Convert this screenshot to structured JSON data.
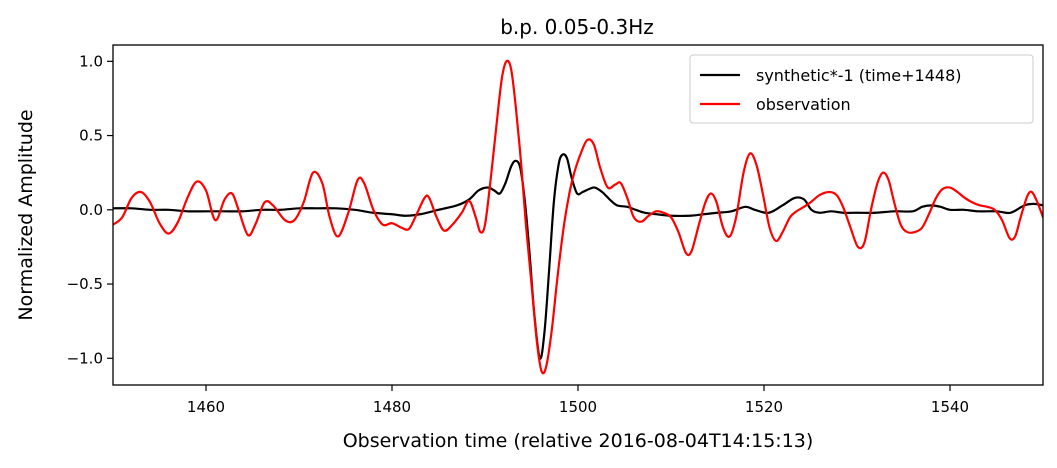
{
  "chart_data": {
    "type": "line",
    "title": "b.p. 0.05-0.3Hz",
    "xlabel": "Observation time (relative 2016-08-04T14:15:13)",
    "ylabel": "Normalized Amplitude",
    "xlim": [
      1450,
      1550
    ],
    "ylim": [
      -1.18,
      1.11
    ],
    "xticks": [
      1460,
      1480,
      1500,
      1520,
      1540
    ],
    "xtick_labels": [
      "1460",
      "1480",
      "1500",
      "1520",
      "1540"
    ],
    "yticks": [
      1.0,
      0.5,
      0.0,
      -0.5,
      -1.0
    ],
    "ytick_labels": [
      "1.0",
      "0.5",
      "0.0",
      "−0.5",
      "−1.0"
    ],
    "grid": false,
    "legend_position": "top-right",
    "series": [
      {
        "name": "synthetic*-1 (time+1448)",
        "color": "#000000",
        "points": [
          [
            1450,
            0.01
          ],
          [
            1452,
            0.01
          ],
          [
            1454,
            0.0
          ],
          [
            1456,
            0.0
          ],
          [
            1458,
            -0.01
          ],
          [
            1460,
            -0.01
          ],
          [
            1462,
            -0.01
          ],
          [
            1464,
            -0.01
          ],
          [
            1466,
            0.0
          ],
          [
            1468,
            0.0
          ],
          [
            1470,
            0.01
          ],
          [
            1472,
            0.01
          ],
          [
            1474,
            0.01
          ],
          [
            1476,
            0.0
          ],
          [
            1477,
            -0.01
          ],
          [
            1478,
            -0.02
          ],
          [
            1480,
            -0.03
          ],
          [
            1481.5,
            -0.04
          ],
          [
            1483,
            -0.03
          ],
          [
            1485,
            0.0
          ],
          [
            1487,
            0.03
          ],
          [
            1488.3,
            0.07
          ],
          [
            1489.3,
            0.13
          ],
          [
            1490.3,
            0.15
          ],
          [
            1491,
            0.13
          ],
          [
            1491.6,
            0.11
          ],
          [
            1492.2,
            0.18
          ],
          [
            1492.8,
            0.29
          ],
          [
            1493.3,
            0.33
          ],
          [
            1493.8,
            0.28
          ],
          [
            1494.3,
            0.05
          ],
          [
            1494.8,
            -0.3
          ],
          [
            1495.3,
            -0.7
          ],
          [
            1495.9,
            -1.0
          ],
          [
            1496.4,
            -0.82
          ],
          [
            1496.9,
            -0.4
          ],
          [
            1497.4,
            0.05
          ],
          [
            1497.9,
            0.3
          ],
          [
            1498.3,
            0.37
          ],
          [
            1498.8,
            0.35
          ],
          [
            1499.3,
            0.22
          ],
          [
            1499.9,
            0.11
          ],
          [
            1500.5,
            0.12
          ],
          [
            1501.2,
            0.14
          ],
          [
            1501.8,
            0.15
          ],
          [
            1502.6,
            0.12
          ],
          [
            1503.4,
            0.07
          ],
          [
            1504.2,
            0.03
          ],
          [
            1505.3,
            0.02
          ],
          [
            1506.2,
            0.0
          ],
          [
            1507.2,
            -0.02
          ],
          [
            1508.5,
            -0.03
          ],
          [
            1510,
            -0.04
          ],
          [
            1512,
            -0.04
          ],
          [
            1513.5,
            -0.03
          ],
          [
            1515,
            -0.02
          ],
          [
            1516.5,
            -0.01
          ],
          [
            1518,
            0.02
          ],
          [
            1519,
            0.0
          ],
          [
            1520.5,
            -0.02
          ],
          [
            1522,
            0.03
          ],
          [
            1523.3,
            0.08
          ],
          [
            1524.3,
            0.07
          ],
          [
            1525.1,
            0.0
          ],
          [
            1526,
            -0.02
          ],
          [
            1527.2,
            -0.01
          ],
          [
            1528.5,
            -0.02
          ],
          [
            1530,
            -0.02
          ],
          [
            1532,
            -0.02
          ],
          [
            1534,
            -0.01
          ],
          [
            1536,
            -0.01
          ],
          [
            1537,
            0.02
          ],
          [
            1538,
            0.03
          ],
          [
            1539,
            0.02
          ],
          [
            1540,
            0.0
          ],
          [
            1541.5,
            0.0
          ],
          [
            1543,
            -0.01
          ],
          [
            1545,
            -0.01
          ],
          [
            1546.5,
            -0.02
          ],
          [
            1548,
            0.03
          ],
          [
            1549,
            0.04
          ],
          [
            1550,
            0.03
          ]
        ]
      },
      {
        "name": "observation",
        "color": "#ff0000",
        "points": [
          [
            1450,
            -0.1
          ],
          [
            1451,
            -0.05
          ],
          [
            1452,
            0.08
          ],
          [
            1453,
            0.12
          ],
          [
            1454,
            0.05
          ],
          [
            1455,
            -0.09
          ],
          [
            1456,
            -0.16
          ],
          [
            1457,
            -0.08
          ],
          [
            1458,
            0.08
          ],
          [
            1459,
            0.19
          ],
          [
            1460,
            0.13
          ],
          [
            1461,
            -0.07
          ],
          [
            1462,
            0.07
          ],
          [
            1462.8,
            0.11
          ],
          [
            1463.5,
            0.0
          ],
          [
            1464.5,
            -0.17
          ],
          [
            1465.3,
            -0.1
          ],
          [
            1466.3,
            0.05
          ],
          [
            1467.2,
            0.03
          ],
          [
            1468.5,
            -0.07
          ],
          [
            1469.5,
            -0.07
          ],
          [
            1470.5,
            0.05
          ],
          [
            1471.5,
            0.25
          ],
          [
            1472.5,
            0.18
          ],
          [
            1473.3,
            -0.05
          ],
          [
            1474.2,
            -0.18
          ],
          [
            1475.3,
            -0.02
          ],
          [
            1476.3,
            0.2
          ],
          [
            1477,
            0.18
          ],
          [
            1478,
            0.0
          ],
          [
            1479,
            -0.1
          ],
          [
            1480,
            -0.09
          ],
          [
            1481,
            -0.12
          ],
          [
            1481.8,
            -0.13
          ],
          [
            1482.5,
            -0.05
          ],
          [
            1483.5,
            0.08
          ],
          [
            1484,
            0.08
          ],
          [
            1484.8,
            -0.05
          ],
          [
            1485.6,
            -0.14
          ],
          [
            1486.5,
            -0.1
          ],
          [
            1487.5,
            -0.02
          ],
          [
            1488.3,
            0.06
          ],
          [
            1489,
            -0.05
          ],
          [
            1489.5,
            -0.15
          ],
          [
            1490,
            -0.1
          ],
          [
            1490.6,
            0.2
          ],
          [
            1491.2,
            0.55
          ],
          [
            1491.8,
            0.88
          ],
          [
            1492.3,
            1.0
          ],
          [
            1492.8,
            0.95
          ],
          [
            1493.3,
            0.7
          ],
          [
            1493.9,
            0.3
          ],
          [
            1494.4,
            -0.1
          ],
          [
            1495,
            -0.5
          ],
          [
            1495.6,
            -0.9
          ],
          [
            1496.1,
            -1.09
          ],
          [
            1496.6,
            -1.05
          ],
          [
            1497.2,
            -0.8
          ],
          [
            1497.8,
            -0.45
          ],
          [
            1498.5,
            -0.1
          ],
          [
            1499.1,
            0.12
          ],
          [
            1499.6,
            0.25
          ],
          [
            1500.3,
            0.38
          ],
          [
            1501,
            0.47
          ],
          [
            1501.7,
            0.44
          ],
          [
            1502.4,
            0.28
          ],
          [
            1503.2,
            0.15
          ],
          [
            1504,
            0.17
          ],
          [
            1504.6,
            0.18
          ],
          [
            1505.3,
            0.08
          ],
          [
            1506,
            -0.05
          ],
          [
            1506.8,
            -0.08
          ],
          [
            1507.6,
            -0.04
          ],
          [
            1508.4,
            -0.01
          ],
          [
            1509.2,
            -0.02
          ],
          [
            1510,
            -0.05
          ],
          [
            1510.8,
            -0.15
          ],
          [
            1511.6,
            -0.29
          ],
          [
            1512.2,
            -0.28
          ],
          [
            1513,
            -0.1
          ],
          [
            1513.7,
            0.05
          ],
          [
            1514.3,
            0.11
          ],
          [
            1514.9,
            0.05
          ],
          [
            1515.6,
            -0.12
          ],
          [
            1516.3,
            -0.18
          ],
          [
            1517,
            -0.05
          ],
          [
            1517.8,
            0.25
          ],
          [
            1518.5,
            0.38
          ],
          [
            1519.2,
            0.3
          ],
          [
            1519.9,
            0.1
          ],
          [
            1520.6,
            -0.12
          ],
          [
            1521.3,
            -0.21
          ],
          [
            1522,
            -0.15
          ],
          [
            1522.8,
            -0.05
          ],
          [
            1523.5,
            -0.01
          ],
          [
            1524.3,
            0.02
          ],
          [
            1525,
            0.05
          ],
          [
            1526,
            0.1
          ],
          [
            1527,
            0.12
          ],
          [
            1527.8,
            0.1
          ],
          [
            1528.5,
            0.02
          ],
          [
            1529.3,
            -0.12
          ],
          [
            1530.1,
            -0.25
          ],
          [
            1530.8,
            -0.22
          ],
          [
            1531.5,
            0.0
          ],
          [
            1532.2,
            0.18
          ],
          [
            1532.8,
            0.25
          ],
          [
            1533.4,
            0.2
          ],
          [
            1534,
            0.05
          ],
          [
            1534.7,
            -0.1
          ],
          [
            1535.4,
            -0.15
          ],
          [
            1536.2,
            -0.15
          ],
          [
            1537,
            -0.12
          ],
          [
            1537.8,
            -0.02
          ],
          [
            1538.5,
            0.08
          ],
          [
            1539.2,
            0.14
          ],
          [
            1540,
            0.15
          ],
          [
            1540.8,
            0.12
          ],
          [
            1541.6,
            0.08
          ],
          [
            1542.4,
            0.05
          ],
          [
            1543.2,
            0.03
          ],
          [
            1544,
            0.02
          ],
          [
            1544.8,
            0.0
          ],
          [
            1545.6,
            -0.07
          ],
          [
            1546.4,
            -0.19
          ],
          [
            1547,
            -0.18
          ],
          [
            1547.6,
            -0.05
          ],
          [
            1548.3,
            0.09
          ],
          [
            1548.8,
            0.12
          ],
          [
            1549.4,
            0.05
          ],
          [
            1550,
            -0.05
          ]
        ]
      }
    ]
  }
}
